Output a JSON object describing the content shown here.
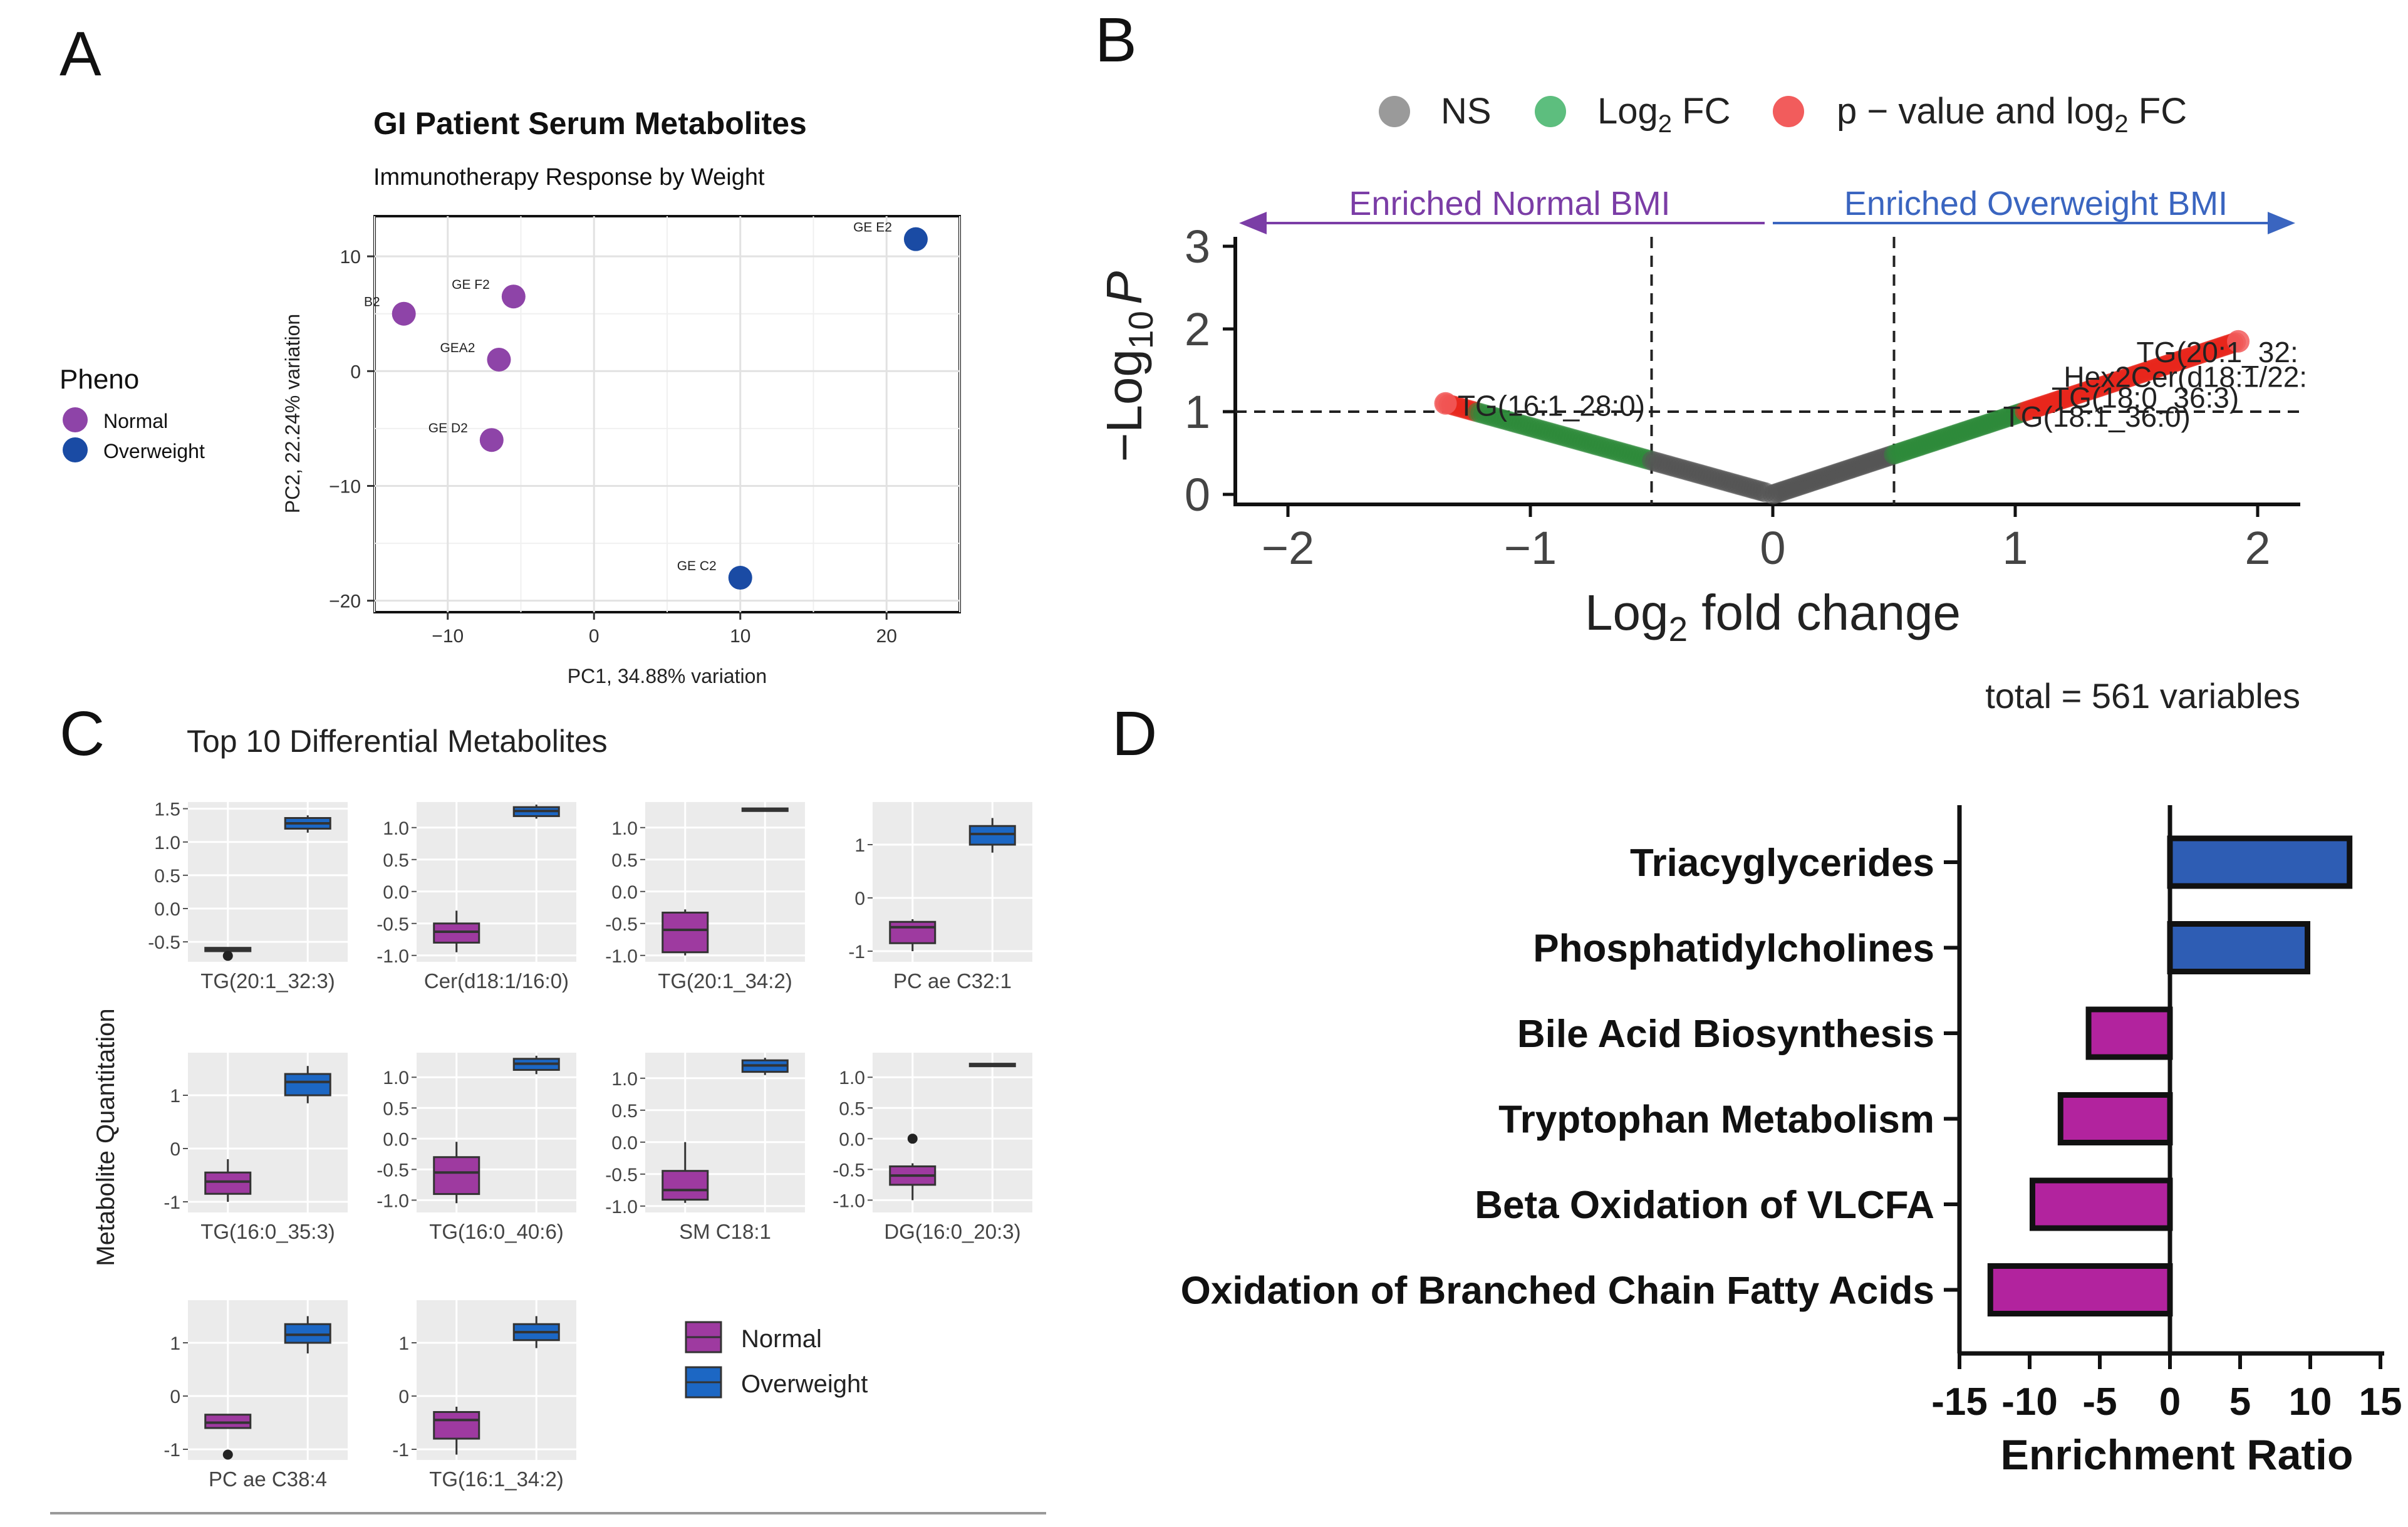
{
  "panels": {
    "a": "A",
    "b": "B",
    "c": "C",
    "d": "D"
  },
  "colors": {
    "normal": "#8E44A8",
    "overweight": "#1A4BA4",
    "ns": "#9A9A9A",
    "fc": "#5DBE7E",
    "pfc": "#F25C5C",
    "bar_blue": "#2E5DB4",
    "bar_magenta": "#B2239E",
    "box_magenta": "#9E3AA0",
    "box_blue": "#1C67C4",
    "arrow_normal": "#7B3DA6",
    "arrow_overweight": "#3A65C0",
    "volcano_green": "#2E8B3A",
    "volcano_red": "#E8261C",
    "volcano_gray": "#555555"
  },
  "chart_data": [
    {
      "id": "pca",
      "type": "scatter",
      "title": "GI Patient Serum Metabolites",
      "subtitle": "Immunotherapy Response by Weight",
      "xlabel": "PC1, 34.88% variation",
      "ylabel": "PC2, 22.24% variation",
      "xlim": [
        -15,
        25
      ],
      "ylim": [
        -21,
        13.5
      ],
      "xticks": [
        -10,
        0,
        10,
        20
      ],
      "yticks": [
        -20,
        -10,
        0,
        10
      ],
      "legend": {
        "title": "Pheno",
        "items": [
          "Normal",
          "Overweight"
        ]
      },
      "points": [
        {
          "label": "B2",
          "x": -13,
          "y": 5,
          "group": "Normal"
        },
        {
          "label": "GE F2",
          "x": -5.5,
          "y": 6.5,
          "group": "Normal"
        },
        {
          "label": "GEA2",
          "x": -6.5,
          "y": 1,
          "group": "Normal"
        },
        {
          "label": "GE D2",
          "x": -7,
          "y": -6,
          "group": "Normal"
        },
        {
          "label": "GE E2",
          "x": 22,
          "y": 11.5,
          "group": "Overweight"
        },
        {
          "label": "GE C2",
          "x": 10,
          "y": -18,
          "group": "Overweight"
        }
      ]
    },
    {
      "id": "volcano",
      "type": "scatter",
      "xlabel_main": "Log",
      "xlabel_sub": "2",
      "xlabel_rest": " fold change",
      "ylabel_main": "−Log",
      "ylabel_sub": "10",
      "ylabel_p": "P",
      "xlim": [
        -2.2,
        2.2
      ],
      "ylim": [
        -0.2,
        3.2
      ],
      "xticks": [
        -2,
        -1,
        0,
        1,
        2
      ],
      "xtick_labels": [
        "−2",
        "−1",
        "0",
        "1",
        "2"
      ],
      "yticks": [
        0,
        1,
        2,
        3
      ],
      "fc_cutoff": 0.5,
      "p_cutoff": 1,
      "legend": [
        {
          "key": "ns",
          "text": "NS"
        },
        {
          "key": "fc",
          "text": "Log",
          "sub": "2",
          "rest": " FC"
        },
        {
          "key": "pfc",
          "text": "p − value and log",
          "sub": "2",
          "rest": " FC"
        }
      ],
      "arrows": {
        "left": "Enriched Normal BMI",
        "right": "Enriched Overweight BMI"
      },
      "caption": "total = 561 variables",
      "labels": [
        {
          "text": "TG(16:1_28:0)",
          "x": -1.3,
          "y": 0.95
        },
        {
          "text": "TG(20:1_32:",
          "x": 1.5,
          "y": 1.6
        },
        {
          "text": "Hex2Cer(d18:1/22:",
          "x": 1.2,
          "y": 1.3
        },
        {
          "text": "TG(18:0_36:3)",
          "x": 1.15,
          "y": 1.05
        },
        {
          "text": "TG(18:1_36:0)",
          "x": 0.95,
          "y": 0.82
        }
      ],
      "curve": {
        "shape": "v",
        "left_end": [
          -1.35,
          1.1
        ],
        "right_end": [
          1.92,
          1.85
        ]
      }
    },
    {
      "id": "boxplots",
      "type": "box",
      "title": "Top 10 Differential Metabolites",
      "ylabel": "Metabolite Quantitation",
      "legend": [
        "Normal",
        "Overweight"
      ],
      "panels": [
        {
          "name": "TG(20:1_32:3)",
          "ylim": [
            -0.8,
            1.6
          ],
          "yticks": [
            -0.5,
            0.0,
            0.5,
            1.0,
            1.5
          ],
          "ytick_labels": [
            "-0.5",
            "0.0",
            "0.5",
            "1.0",
            "1.5"
          ],
          "normal": {
            "q1": -0.64,
            "med": -0.61,
            "q3": -0.59,
            "lo": -0.65,
            "hi": -0.58,
            "out": [
              -0.71
            ]
          },
          "overweight": {
            "q1": 1.2,
            "med": 1.28,
            "q3": 1.36,
            "lo": 1.14,
            "hi": 1.4,
            "out": []
          }
        },
        {
          "name": "Cer(d18:1/16:0)",
          "ylim": [
            -1.1,
            1.4
          ],
          "yticks": [
            -1.0,
            -0.5,
            0.0,
            0.5,
            1.0
          ],
          "ytick_labels": [
            "-1.0",
            "-0.5",
            "0.0",
            "0.5",
            "1.0"
          ],
          "normal": {
            "q1": -0.8,
            "med": -0.63,
            "q3": -0.5,
            "lo": -0.95,
            "hi": -0.3,
            "out": []
          },
          "overweight": {
            "q1": 1.18,
            "med": 1.26,
            "q3": 1.32,
            "lo": 1.14,
            "hi": 1.36,
            "out": []
          }
        },
        {
          "name": "TG(20:1_34:2)",
          "ylim": [
            -1.1,
            1.4
          ],
          "yticks": [
            -1.0,
            -0.5,
            0.0,
            0.5,
            1.0
          ],
          "ytick_labels": [
            "-1.0",
            "-0.5",
            "0.0",
            "0.5",
            "1.0"
          ],
          "normal": {
            "q1": -0.95,
            "med": -0.6,
            "q3": -0.33,
            "lo": -1.0,
            "hi": -0.28,
            "out": []
          },
          "overweight": {
            "q1": 1.26,
            "med": 1.28,
            "q3": 1.3,
            "lo": 1.26,
            "hi": 1.31,
            "out": []
          }
        },
        {
          "name": "PC ae C32:1",
          "ylim": [
            -1.2,
            1.8
          ],
          "yticks": [
            -1,
            0,
            1
          ],
          "ytick_labels": [
            "-1",
            "0",
            "1"
          ],
          "normal": {
            "q1": -0.85,
            "med": -0.55,
            "q3": -0.45,
            "lo": -1.0,
            "hi": -0.4,
            "out": []
          },
          "overweight": {
            "q1": 1.0,
            "med": 1.2,
            "q3": 1.35,
            "lo": 0.85,
            "hi": 1.5,
            "out": []
          }
        },
        {
          "name": "TG(16:0_35:3)",
          "ylim": [
            -1.2,
            1.8
          ],
          "yticks": [
            -1,
            0,
            1
          ],
          "ytick_labels": [
            "-1",
            "0",
            "1"
          ],
          "normal": {
            "q1": -0.85,
            "med": -0.62,
            "q3": -0.45,
            "lo": -1.0,
            "hi": -0.2,
            "out": []
          },
          "overweight": {
            "q1": 1.0,
            "med": 1.25,
            "q3": 1.4,
            "lo": 0.85,
            "hi": 1.55,
            "out": []
          }
        },
        {
          "name": "TG(16:0_40:6)",
          "ylim": [
            -1.2,
            1.4
          ],
          "yticks": [
            -1.0,
            -0.5,
            0.0,
            0.5,
            1.0
          ],
          "ytick_labels": [
            "-1.0",
            "-0.5",
            "0.0",
            "0.5",
            "1.0"
          ],
          "normal": {
            "q1": -0.9,
            "med": -0.55,
            "q3": -0.3,
            "lo": -1.05,
            "hi": -0.05,
            "out": []
          },
          "overweight": {
            "q1": 1.12,
            "med": 1.22,
            "q3": 1.3,
            "lo": 1.05,
            "hi": 1.35,
            "out": []
          }
        },
        {
          "name": "SM C18:1",
          "ylim": [
            -1.1,
            1.4
          ],
          "yticks": [
            -1.0,
            -0.5,
            0.0,
            0.5,
            1.0
          ],
          "ytick_labels": [
            "-1.0",
            "-0.5",
            "0.0",
            "0.5",
            "1.0"
          ],
          "normal": {
            "q1": -0.9,
            "med": -0.75,
            "q3": -0.45,
            "lo": -0.95,
            "hi": 0.0,
            "out": []
          },
          "overweight": {
            "q1": 1.1,
            "med": 1.2,
            "q3": 1.28,
            "lo": 1.05,
            "hi": 1.32,
            "out": []
          }
        },
        {
          "name": "DG(16:0_20:3)",
          "ylim": [
            -1.2,
            1.4
          ],
          "yticks": [
            -1.0,
            -0.5,
            0.0,
            0.5,
            1.0
          ],
          "ytick_labels": [
            "-1.0",
            "-0.5",
            "0.0",
            "0.5",
            "1.0"
          ],
          "normal": {
            "q1": -0.75,
            "med": -0.6,
            "q3": -0.45,
            "lo": -1.0,
            "hi": -0.4,
            "out": [
              0.0
            ]
          },
          "overweight": {
            "q1": 1.18,
            "med": 1.2,
            "q3": 1.22,
            "lo": 1.17,
            "hi": 1.23,
            "out": []
          }
        },
        {
          "name": "PC ae C38:4",
          "ylim": [
            -1.2,
            1.8
          ],
          "yticks": [
            -1,
            0,
            1
          ],
          "ytick_labels": [
            "-1",
            "0",
            "1"
          ],
          "normal": {
            "q1": -0.6,
            "med": -0.5,
            "q3": -0.35,
            "lo": -0.6,
            "hi": -0.35,
            "out": [
              -1.1
            ]
          },
          "overweight": {
            "q1": 1.0,
            "med": 1.15,
            "q3": 1.35,
            "lo": 0.8,
            "hi": 1.5,
            "out": []
          }
        },
        {
          "name": "TG(16:1_34:2)",
          "ylim": [
            -1.2,
            1.8
          ],
          "yticks": [
            -1,
            0,
            1
          ],
          "ytick_labels": [
            "-1",
            "0",
            "1"
          ],
          "normal": {
            "q1": -0.8,
            "med": -0.45,
            "q3": -0.3,
            "lo": -1.1,
            "hi": -0.2,
            "out": []
          },
          "overweight": {
            "q1": 1.05,
            "med": 1.2,
            "q3": 1.35,
            "lo": 0.9,
            "hi": 1.5,
            "out": []
          }
        }
      ]
    },
    {
      "id": "enrichment",
      "type": "bar",
      "orientation": "horizontal",
      "xlabel": "Enrichment Ratio",
      "xlim": [
        -15,
        15
      ],
      "xticks": [
        -15,
        -10,
        -5,
        0,
        5,
        10,
        15
      ],
      "xtick_labels": [
        "-15",
        "-10",
        "-5",
        "0",
        "5",
        "10",
        "15"
      ],
      "categories": [
        "Triacyglycerides",
        "Phosphatidylcholines",
        "Bile Acid Biosynthesis",
        "Tryptophan Metabolism",
        "Beta Oxidation of VLCFA",
        "Oxidation of Branched Chain Fatty Acids"
      ],
      "values": [
        12.8,
        9.8,
        -5.8,
        -7.8,
        -9.8,
        -12.8
      ]
    }
  ]
}
